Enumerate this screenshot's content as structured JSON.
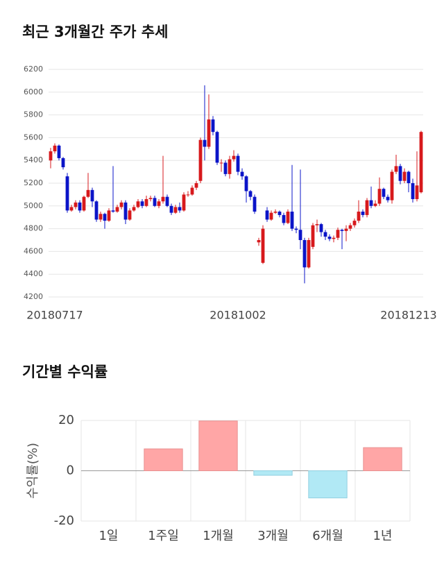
{
  "chart_data": [
    {
      "type": "candlestick",
      "title": "최근 3개월간 주가 추세",
      "categories": [
        null,
        "20180717",
        null,
        null,
        null,
        null,
        null,
        null,
        null,
        null,
        null,
        null,
        null,
        null,
        null,
        null,
        null,
        null,
        null,
        null,
        null,
        null,
        null,
        null,
        null,
        null,
        null,
        null,
        null,
        null,
        null,
        null,
        null,
        null,
        null,
        null,
        null,
        null,
        null,
        null,
        null,
        null,
        null,
        null,
        null,
        "20181002",
        null,
        null,
        null,
        null,
        null,
        null,
        null,
        null,
        null,
        null,
        null,
        null,
        null,
        null,
        null,
        null,
        null,
        null,
        null,
        null,
        null,
        null,
        null,
        null,
        null,
        null,
        null,
        null,
        null,
        null,
        null,
        null,
        null,
        null,
        null,
        null,
        null,
        null,
        null,
        null,
        "20181213",
        null,
        null,
        null
      ],
      "open": [
        5400,
        5480,
        5530,
        5420,
        5260,
        4960,
        4990,
        5030,
        4960,
        5080,
        5140,
        5040,
        4880,
        4930,
        4870,
        4960,
        4950,
        4990,
        5030,
        4880,
        4960,
        4990,
        5040,
        5000,
        5060,
        5070,
        5000,
        5040,
        5080,
        5000,
        4940,
        4990,
        4960,
        5100,
        5100,
        5160,
        5220,
        5580,
        5520,
        5760,
        5650,
        5380,
        5380,
        5280,
        5410,
        5440,
        5300,
        5260,
        5130,
        5080,
        4680,
        4500,
        4960,
        4880,
        4940,
        4950,
        4920,
        4850,
        4950,
        4800,
        4790,
        4700,
        4460,
        4640,
        4830,
        4840,
        4770,
        4730,
        4710,
        4720,
        4790,
        4780,
        4800,
        4830,
        4870,
        4950,
        4920,
        5050,
        5000,
        5020,
        5150,
        5080,
        5050,
        5300,
        5350,
        5220,
        5300,
        5200,
        5060,
        5120
      ],
      "high": [
        5510,
        5550,
        5540,
        5430,
        5290,
        5010,
        5050,
        5050,
        5090,
        5290,
        5160,
        5050,
        4950,
        4940,
        4980,
        5350,
        5010,
        5050,
        5050,
        4980,
        5010,
        5060,
        5060,
        5090,
        5090,
        5090,
        5060,
        5440,
        5100,
        5020,
        5010,
        5030,
        5120,
        5130,
        5180,
        5220,
        5600,
        6060,
        5980,
        5790,
        5660,
        5410,
        5400,
        5440,
        5490,
        5460,
        5330,
        5270,
        5140,
        5100,
        4720,
        4830,
        4990,
        4960,
        4970,
        4960,
        4940,
        4970,
        5360,
        4820,
        5320,
        4720,
        4720,
        4850,
        4880,
        4850,
        4790,
        4750,
        4740,
        4810,
        4800,
        4830,
        4850,
        4890,
        5050,
        4970,
        5070,
        5170,
        5050,
        5250,
        5160,
        5100,
        5320,
        5450,
        5370,
        5330,
        5310,
        5240,
        5480,
        5660
      ],
      "low": [
        5330,
        5460,
        5400,
        5320,
        4940,
        4950,
        4970,
        4940,
        4950,
        5070,
        4990,
        4860,
        4860,
        4800,
        4860,
        4940,
        4940,
        4970,
        4840,
        4870,
        4950,
        4980,
        4980,
        4990,
        5040,
        4990,
        4980,
        5020,
        4990,
        4920,
        4930,
        4940,
        4950,
        5080,
        5090,
        5140,
        5200,
        5400,
        5500,
        5620,
        5360,
        5300,
        5260,
        5240,
        5390,
        5270,
        5230,
        5030,
        5050,
        4930,
        4650,
        4490,
        4860,
        4870,
        4930,
        4900,
        4830,
        4840,
        4780,
        4760,
        4620,
        4320,
        4450,
        4620,
        4770,
        4730,
        4700,
        4690,
        4680,
        4700,
        4620,
        4690,
        4780,
        4810,
        4850,
        4900,
        4900,
        4980,
        4990,
        5000,
        5060,
        5030,
        5020,
        5280,
        5190,
        5200,
        5120,
        5030,
        5040,
        5110
      ],
      "close": [
        5480,
        5530,
        5420,
        5340,
        4960,
        4990,
        5030,
        4960,
        5080,
        5140,
        5040,
        4880,
        4930,
        4870,
        4960,
        4950,
        4990,
        5030,
        4880,
        4960,
        4990,
        5040,
        5000,
        5060,
        5070,
        5000,
        5040,
        5080,
        5000,
        4940,
        4990,
        4960,
        5100,
        5100,
        5160,
        5200,
        5580,
        5520,
        5760,
        5650,
        5380,
        5380,
        5280,
        5410,
        5440,
        5300,
        5260,
        5130,
        5080,
        4950,
        4700,
        4800,
        4880,
        4940,
        4950,
        4920,
        4850,
        4950,
        4800,
        4790,
        4700,
        4460,
        4700,
        4830,
        4840,
        4770,
        4730,
        4710,
        4720,
        4790,
        4780,
        4800,
        4830,
        4870,
        4950,
        4920,
        5050,
        5000,
        5020,
        5150,
        5080,
        5050,
        5300,
        5350,
        5220,
        5300,
        5200,
        5060,
        5180,
        5650
      ],
      "up_color": "#d7191c",
      "down_color": "#0b14c8",
      "ylim": [
        4200,
        6200
      ],
      "yticks": [
        4200,
        4400,
        4600,
        4800,
        5000,
        5200,
        5400,
        5600,
        5800,
        6000,
        6200
      ],
      "grid": true
    },
    {
      "type": "bar",
      "title": "기간별 수익률",
      "y_label": "수익률(%)",
      "categories": [
        "1일",
        "1주일",
        "1개월",
        "3개월",
        "6개월",
        "1년"
      ],
      "values": [
        0,
        8.7,
        19.8,
        -1.8,
        -10.8,
        9.2
      ],
      "positive_color": "#ffa6a6",
      "negative_color": "#b1e9f5",
      "ylim": [
        -20,
        20
      ],
      "yticks": [
        -20,
        0,
        20
      ],
      "grid": true
    }
  ]
}
